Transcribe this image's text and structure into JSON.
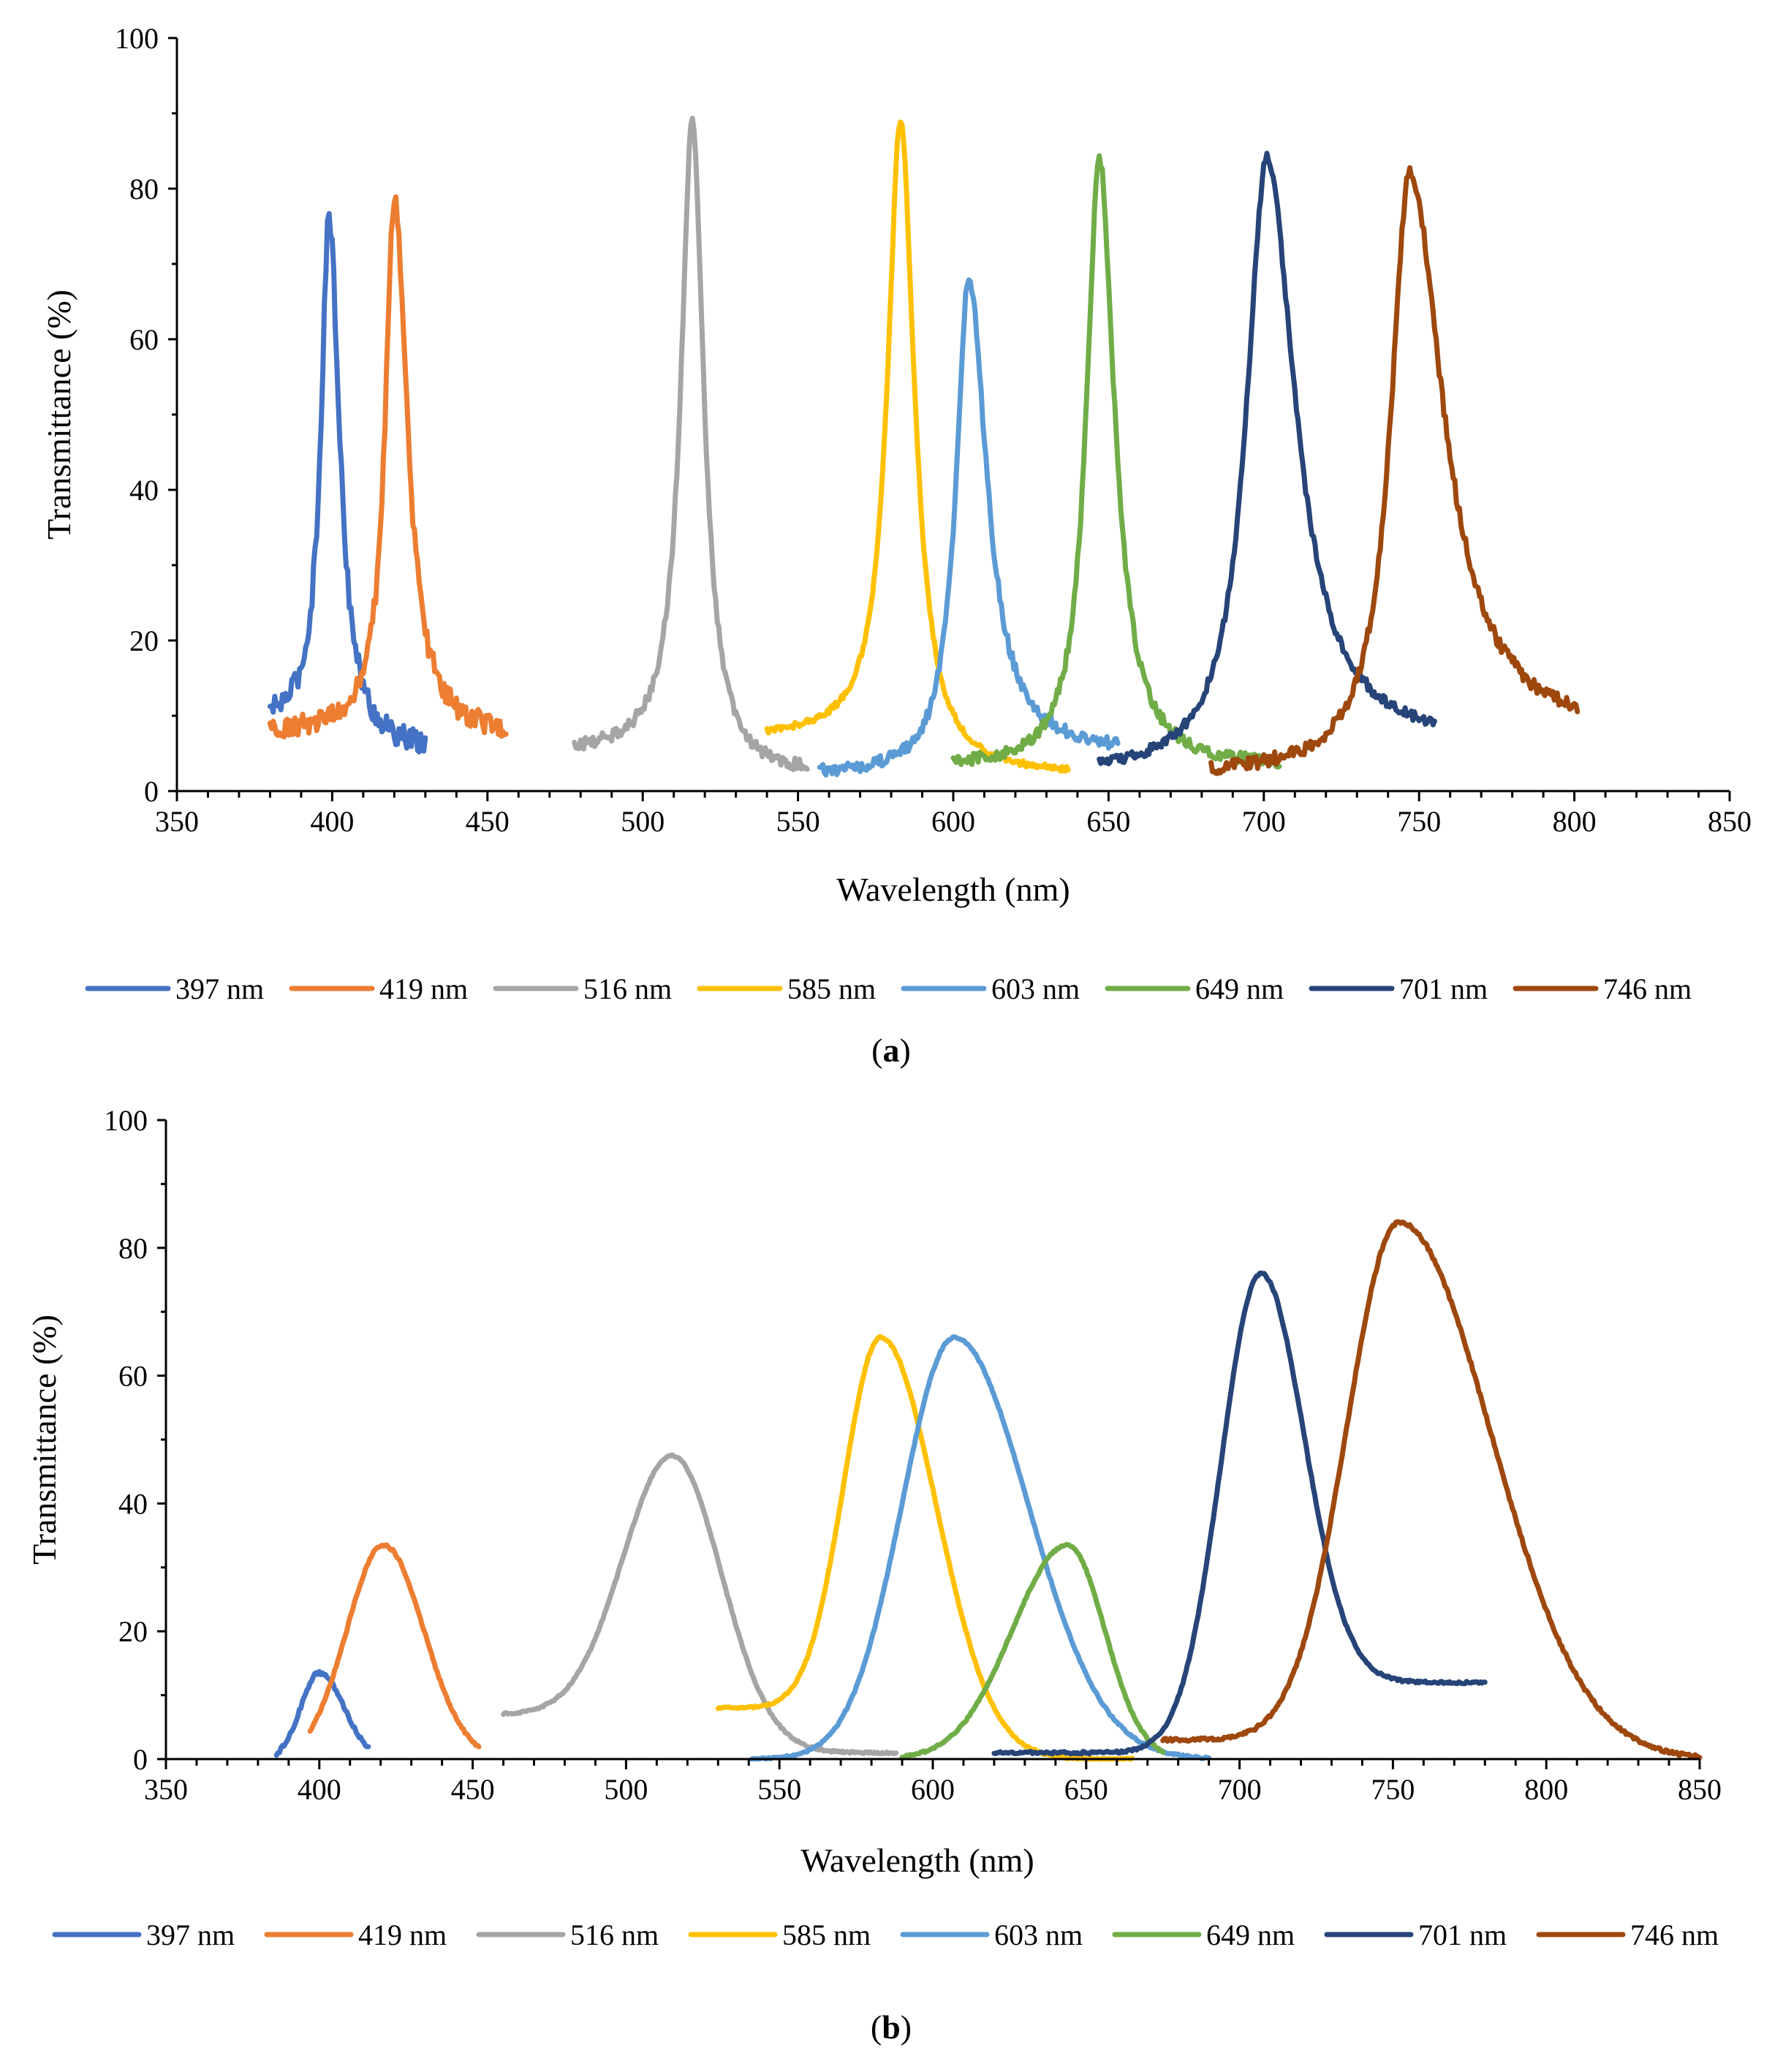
{
  "chart_data": [
    {
      "type": "line",
      "panel_label": "(a)",
      "panel_letter": "a",
      "title": "",
      "xlabel": "Wavelength  (nm)",
      "ylabel": "Transmittance (%)",
      "xlim": [
        350,
        850
      ],
      "ylim": [
        0,
        100
      ],
      "xticks": [
        "350",
        "400",
        "450",
        "500",
        "550",
        "600",
        "650",
        "700",
        "750",
        "800",
        "850"
      ],
      "yticks": [
        "0",
        "20",
        "40",
        "60",
        "80",
        "100"
      ],
      "grid": false,
      "legend_position": "bottom",
      "series": [
        {
          "name": "397 nm",
          "color": "#4472C4",
          "center": 399,
          "peak": 76,
          "base_left": 9,
          "base_right": 5,
          "width_left": 3.2,
          "width_right": 4.2,
          "x_start": 380,
          "x_end": 430,
          "noise": 1.6
        },
        {
          "name": "419 nm",
          "color": "#ED7D31",
          "center": 420,
          "peak": 79,
          "base_left": 8,
          "base_right": 7,
          "width_left": 3.5,
          "width_right": 5.0,
          "x_start": 380,
          "x_end": 456,
          "noise": 1.5
        },
        {
          "name": "516 nm",
          "color": "#A5A5A5",
          "center": 516,
          "peak": 89,
          "base_left": 5,
          "base_right": 2,
          "width_left": 4.5,
          "width_right": 4.5,
          "x_start": 478,
          "x_end": 553,
          "noise": 0.8
        },
        {
          "name": "585 nm",
          "color": "#FFC000",
          "center": 583,
          "peak": 89,
          "base_left": 7,
          "base_right": 2,
          "width_left": 5.0,
          "width_right": 5.5,
          "x_start": 540,
          "x_end": 637,
          "noise": 0.4
        },
        {
          "name": "603 nm",
          "color": "#5B9BD5",
          "center": 605,
          "peak": 68,
          "base_left": 2,
          "base_right": 5,
          "width_left": 5.0,
          "width_right": 7.0,
          "x_start": 557,
          "x_end": 653,
          "noise": 0.8
        },
        {
          "name": "649 nm",
          "color": "#70AD47",
          "center": 647,
          "peak": 84,
          "base_left": 3,
          "base_right": 3,
          "width_left": 5.0,
          "width_right": 6.0,
          "x_start": 600,
          "x_end": 705,
          "noise": 0.8
        },
        {
          "name": "701 nm",
          "color": "#264478",
          "center": 701,
          "peak": 84,
          "base_left": 2,
          "base_right": 6,
          "width_left": 8.0,
          "width_right": 11.0,
          "x_start": 647,
          "x_end": 755,
          "noise": 0.7
        },
        {
          "name": "746 nm",
          "color": "#9E480E",
          "center": 747,
          "peak": 82,
          "base_left": 2,
          "base_right": 7,
          "width_left": 7.5,
          "width_right": 13.0,
          "x_start": 683,
          "x_end": 801,
          "noise": 0.9
        }
      ]
    },
    {
      "type": "line",
      "panel_label": "(b)",
      "panel_letter": "b",
      "title": "",
      "xlabel": "Wavelength  (nm)",
      "ylabel": "Transmittance (%)",
      "xlim": [
        350,
        850
      ],
      "ylim": [
        0,
        100
      ],
      "xticks": [
        "350",
        "400",
        "450",
        "500",
        "550",
        "600",
        "650",
        "700",
        "750",
        "800",
        "850"
      ],
      "yticks": [
        "0",
        "20",
        "40",
        "60",
        "80",
        "100"
      ],
      "grid": false,
      "legend_position": "bottom",
      "series": [
        {
          "name": "397 nm",
          "color": "#4472C4",
          "center": 400,
          "peak": 13.5,
          "base_left": 0,
          "base_right": 0,
          "width_left": 6,
          "width_right": 8,
          "shape": "gauss",
          "x_start": 386,
          "x_end": 416,
          "noise": 0.3
        },
        {
          "name": "419 nm",
          "color": "#ED7D31",
          "center": 421,
          "peak": 33.5,
          "base_left": 0,
          "base_right": 0,
          "width_left": 12,
          "width_right": 13,
          "shape": "gauss",
          "x_start": 397,
          "x_end": 452,
          "noise": 0.2
        },
        {
          "name": "516 nm",
          "color": "#A5A5A5",
          "center": 515,
          "peak": 47.5,
          "base_left": 7,
          "base_right": 1,
          "width_left": 16,
          "width_right": 16,
          "shape": "gauss",
          "x_start": 460,
          "x_end": 588,
          "noise": 0.15
        },
        {
          "name": "585 nm",
          "color": "#FFC000",
          "center": 583,
          "peak": 66,
          "base_left": 8,
          "base_right": 0,
          "width_left": 12,
          "width_right": 18,
          "shape": "gauss",
          "x_start": 530,
          "x_end": 665,
          "noise": 0.15
        },
        {
          "name": "603 nm",
          "color": "#5B9BD5",
          "center": 607,
          "peak": 66,
          "base_left": 0,
          "base_right": 0,
          "width_left": 17,
          "width_right": 24,
          "shape": "gauss",
          "x_start": 541,
          "x_end": 690,
          "noise": 0.15
        },
        {
          "name": "649 nm",
          "color": "#70AD47",
          "center": 644,
          "peak": 33.5,
          "base_left": 0,
          "base_right": 0,
          "width_left": 18,
          "width_right": 12,
          "shape": "gauss",
          "x_start": 590,
          "x_end": 675,
          "noise": 0.15
        },
        {
          "name": "701 nm",
          "color": "#264478",
          "center": 707,
          "peak": 76,
          "base_left": 1,
          "base_right": 12,
          "width_left": 13,
          "width_right": 14,
          "shape": "gauss",
          "x_start": 620,
          "x_end": 780,
          "noise": 0.2
        },
        {
          "name": "746 nm",
          "color": "#9E480E",
          "center": 752,
          "peak": 84,
          "base_left": 3,
          "base_right": 0,
          "width_left": 17,
          "width_right": 30,
          "shape": "gauss",
          "x_start": 675,
          "x_end": 850,
          "noise": 0.25
        }
      ]
    }
  ]
}
